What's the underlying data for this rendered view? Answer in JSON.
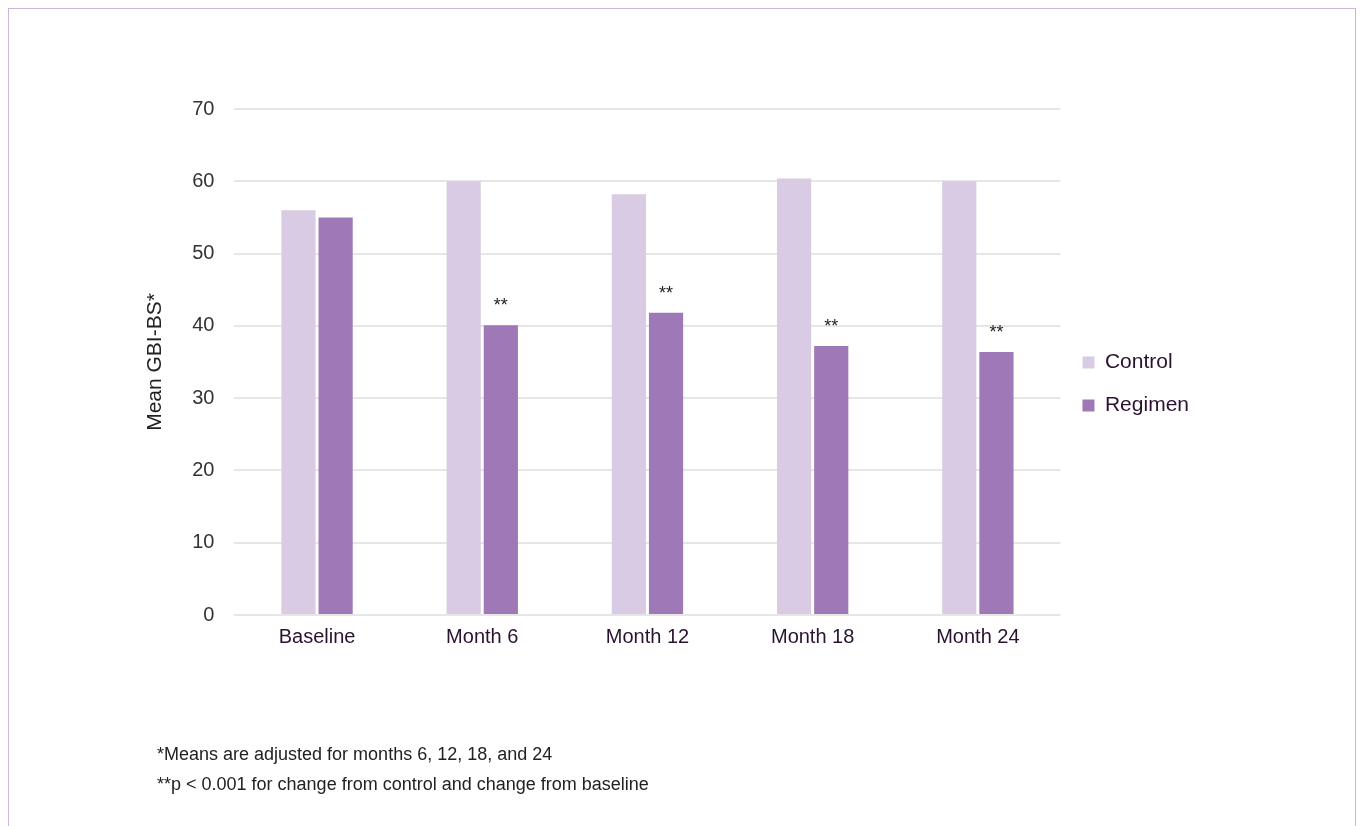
{
  "chart_data": {
    "type": "bar",
    "ylabel": "Mean GBI-BS*",
    "categories": [
      "Baseline",
      "Month 6",
      "Month 12",
      "Month 18",
      "Month 24"
    ],
    "series": [
      {
        "name": "Control",
        "color": "#d9cbe3",
        "values": [
          56,
          60,
          58.2,
          60.4,
          60
        ]
      },
      {
        "name": "Regimen",
        "color": "#9f79b7",
        "values": [
          55,
          40.1,
          41.8,
          37.2,
          36.4
        ],
        "value_labels": [
          null,
          "**",
          "**",
          "**",
          "**"
        ]
      }
    ],
    "ylim": [
      0,
      70
    ],
    "yticks": [
      0,
      10,
      20,
      30,
      40,
      50,
      60,
      70
    ],
    "grid": "y",
    "legend": "right",
    "annotations": [
      "*Means are adjusted for months 6, 12, 18, and 24",
      "**p < 0.001 for change from control and change from baseline"
    ]
  }
}
